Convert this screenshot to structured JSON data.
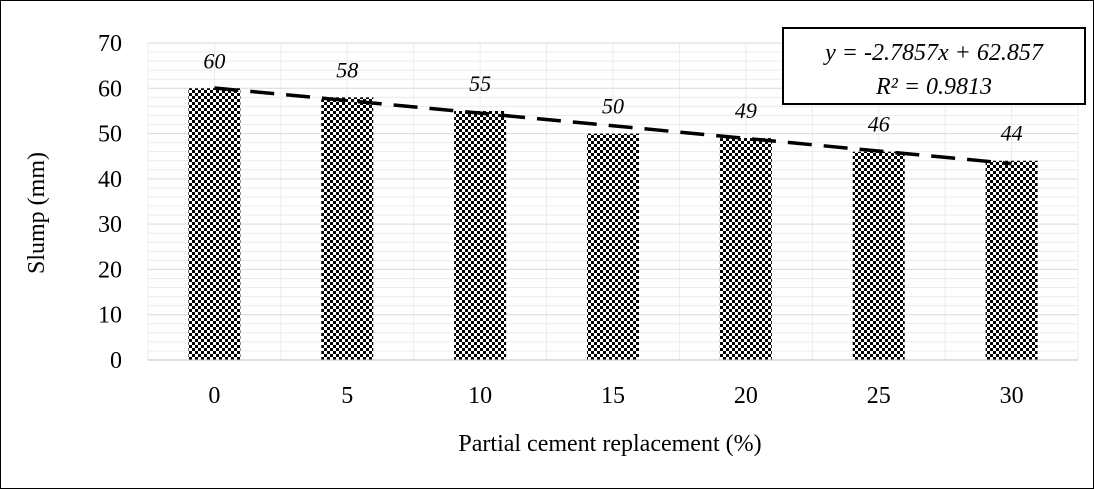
{
  "chart_data": {
    "type": "bar",
    "categories": [
      "0",
      "5",
      "10",
      "15",
      "20",
      "25",
      "30"
    ],
    "values": [
      60,
      58,
      55,
      50,
      49,
      46,
      44
    ],
    "data_labels": [
      "60",
      "58",
      "55",
      "50",
      "49",
      "46",
      "44"
    ],
    "xlabel": "Partial cement replacement (%)",
    "ylabel": "Slump (mm)",
    "ylim": [
      0,
      70
    ],
    "yticks": [
      "0",
      "10",
      "20",
      "30",
      "40",
      "50",
      "60",
      "70"
    ],
    "trendline": {
      "type": "linear",
      "slope": -2.7857,
      "intercept": 62.857,
      "equation": "y = -2.7857x + 62.857",
      "r_squared": "R² = 0.9813",
      "style": "dashed"
    },
    "bar_pattern": "checkerboard",
    "grid": true,
    "legend": "none",
    "colors": {
      "bar": "#000000",
      "grid": "#d9d9d9",
      "trendline": "#000000"
    }
  }
}
